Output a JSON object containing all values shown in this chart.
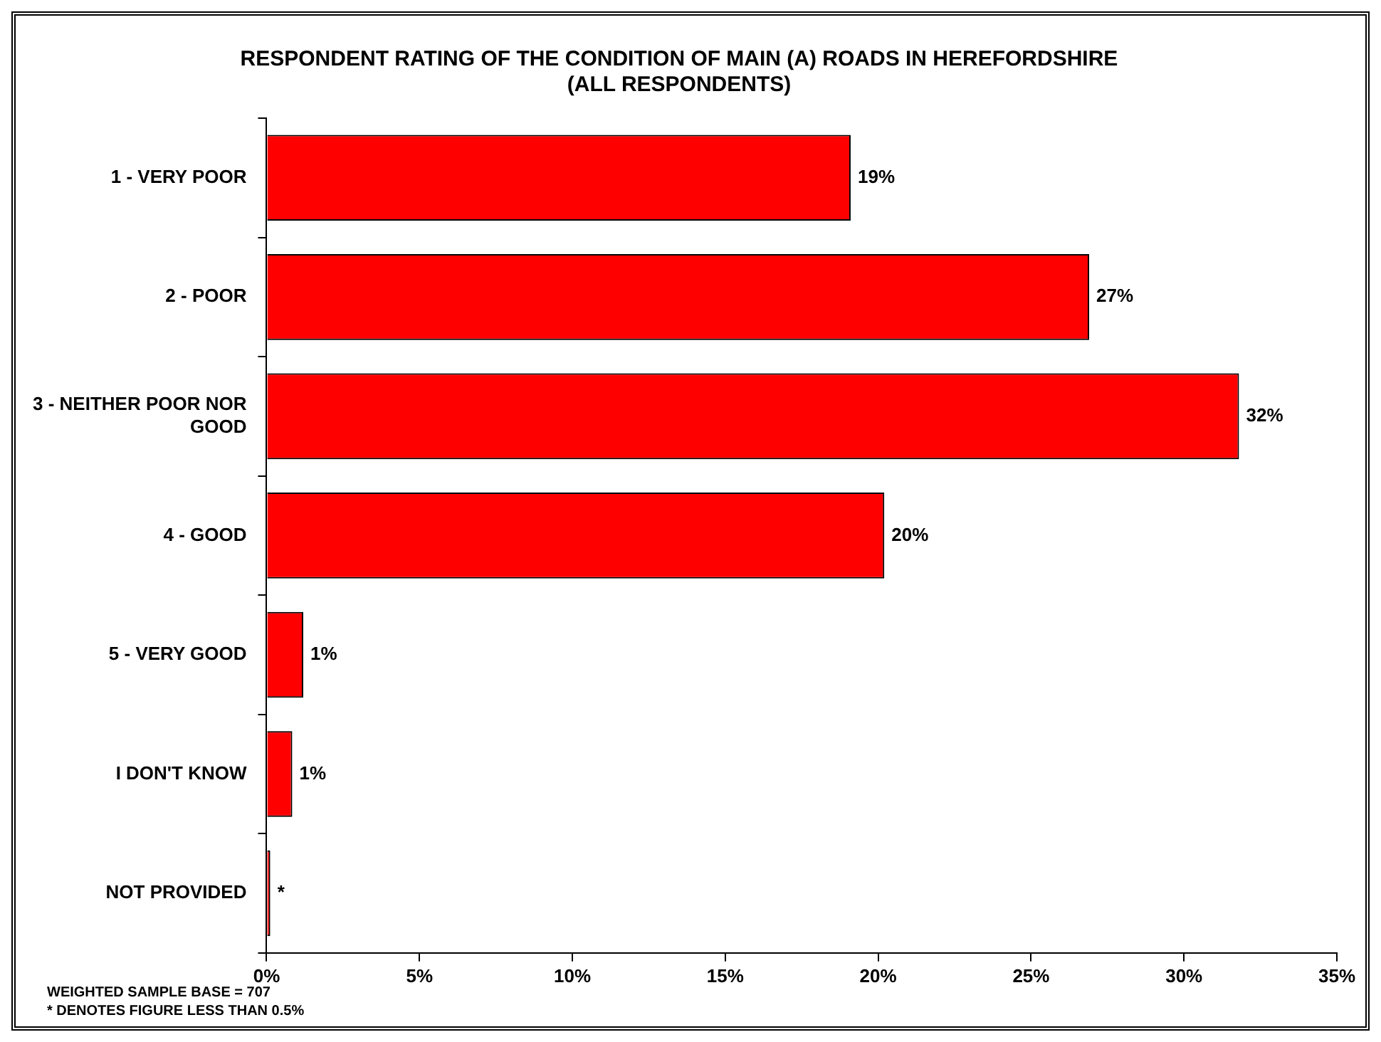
{
  "chart_data": {
    "type": "bar",
    "orientation": "horizontal",
    "title": [
      "RESPONDENT RATING OF THE CONDITION OF MAIN (A) ROADS IN HEREFORDSHIRE",
      "(ALL RESPONDENTS)"
    ],
    "categories": [
      "1 - VERY POOR",
      "2 - POOR",
      "3 - NEITHER POOR NOR GOOD",
      "4 - GOOD",
      "5 - VERY GOOD",
      "I DON'T KNOW",
      "NOT PROVIDED"
    ],
    "values": [
      19.1,
      26.9,
      31.8,
      20.2,
      1.2,
      0.84,
      0.12
    ],
    "value_labels": [
      "19%",
      "27%",
      "32%",
      "20%",
      "1%",
      "1%",
      "*"
    ],
    "color": "#ff0000",
    "xlim": [
      0,
      35
    ],
    "xticks": [
      {
        "value": 0,
        "label": "0%"
      },
      {
        "value": 5,
        "label": "5%"
      },
      {
        "value": 10,
        "label": "10%"
      },
      {
        "value": 15,
        "label": "15%"
      },
      {
        "value": 20,
        "label": "20%"
      },
      {
        "value": 25,
        "label": "25%"
      },
      {
        "value": 30,
        "label": "30%"
      },
      {
        "value": 35,
        "label": "35%"
      }
    ],
    "grid": false,
    "legend": false,
    "annotations": [
      "WEIGHTED SAMPLE BASE = 707",
      "* DENOTES FIGURE LESS THAN 0.5%"
    ]
  }
}
